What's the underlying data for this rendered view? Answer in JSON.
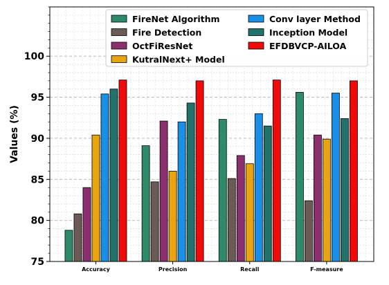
{
  "chart_data": {
    "type": "bar",
    "title": "",
    "xlabel": "",
    "ylabel": "Values (%)",
    "ylim": [
      75,
      106
    ],
    "yticks": [
      75,
      80,
      85,
      90,
      95,
      100
    ],
    "grid": true,
    "legend_position": "top-right",
    "categories": [
      "Accuracy",
      "Precision",
      "Recall",
      "F-measure"
    ],
    "series": [
      {
        "name": "FireNet Algorithm",
        "color": "#2e8b6a",
        "values": [
          78.8,
          89.1,
          92.3,
          95.6
        ]
      },
      {
        "name": "Fire Detection",
        "color": "#6b5a56",
        "values": [
          80.8,
          84.7,
          85.1,
          82.4
        ]
      },
      {
        "name": "OctFiResNet",
        "color": "#8b2f6e",
        "values": [
          84.0,
          92.1,
          87.9,
          90.4
        ]
      },
      {
        "name": "KutralNext+ Model",
        "color": "#e8a50f",
        "values": [
          90.4,
          86.0,
          86.9,
          89.9
        ]
      },
      {
        "name": "Conv layer Method",
        "color": "#1a8fe8",
        "values": [
          95.4,
          92.0,
          93.0,
          95.5
        ]
      },
      {
        "name": "Inception Model",
        "color": "#21726a",
        "values": [
          96.0,
          94.3,
          91.5,
          92.4
        ]
      },
      {
        "name": "EFDBVCP-AILOA",
        "color": "#f00a0a",
        "values": [
          97.1,
          97.0,
          97.1,
          97.0
        ]
      }
    ]
  }
}
